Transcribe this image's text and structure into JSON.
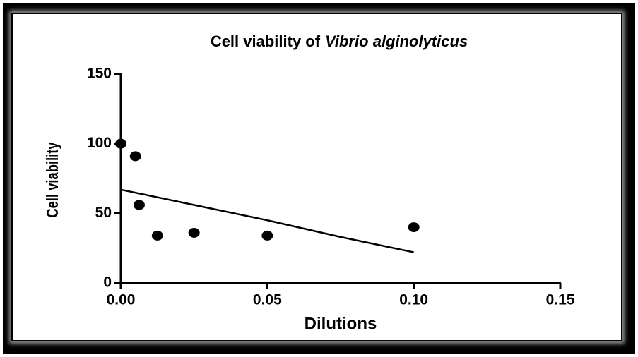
{
  "chart_data": {
    "type": "scatter",
    "title": [
      "Cell viability of",
      "Vibrio alginolyticus"
    ],
    "x_label": "Dilutions",
    "y_label": "Cell viability",
    "series": [
      {
        "color": "#000000",
        "x": [
          0,
          0.005,
          0.00625,
          0.0125,
          0.025,
          0.05,
          0.1
        ],
        "values": [
          100,
          91,
          56,
          34,
          36,
          34,
          40
        ]
      }
    ],
    "fit_line": {
      "color": "#000000",
      "x": [
        0,
        0.025,
        0.05,
        0.075,
        0.1
      ],
      "values": [
        67,
        56,
        45,
        33,
        22
      ]
    },
    "xlim": [
      0,
      0.15
    ],
    "xticks": [
      {
        "value": 0,
        "label": "0.00"
      },
      {
        "value": 0.05,
        "label": "0.05"
      },
      {
        "value": 0.1,
        "label": "0.10"
      },
      {
        "value": 0.15,
        "label": "0.15"
      }
    ],
    "ylim": [
      0,
      150
    ],
    "yticks": [
      0,
      50,
      100,
      150
    ]
  }
}
